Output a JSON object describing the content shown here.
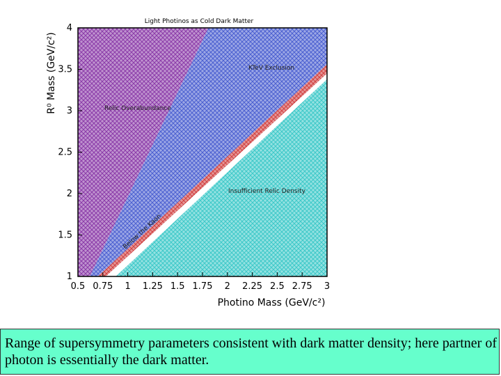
{
  "chart_data": {
    "type": "region",
    "title": "Light Photinos as Cold Dark Matter",
    "x_label": "Photino Mass (GeV/c²)",
    "y_label": "R⁰ Mass (GeV/c²)",
    "xlim": [
      0.5,
      3
    ],
    "ylim": [
      1,
      4
    ],
    "xticks": [
      0.5,
      0.75,
      1,
      1.25,
      1.5,
      1.75,
      2,
      2.25,
      2.5,
      2.75,
      3
    ],
    "yticks": [
      1,
      1.5,
      2,
      2.5,
      3,
      3.5,
      4
    ],
    "series": [
      {
        "name": "Relic Overabundance",
        "color": "#8a3aa8",
        "x": [
          0.5,
          0.62,
          1.81,
          0.5
        ],
        "y": [
          1,
          1,
          4,
          4
        ]
      },
      {
        "name": "KTeV Exclusion",
        "color": "#4a5fd0",
        "x": [
          0.62,
          1.81,
          3,
          3,
          0.7
        ],
        "y": [
          1,
          4,
          4,
          3.56,
          1
        ]
      },
      {
        "name": "Below the Kaon",
        "color": "#d04040",
        "x": [
          0.7,
          3,
          3,
          0.78
        ],
        "y": [
          1,
          3.56,
          3.45,
          1
        ]
      },
      {
        "name": "Insufficient Relic Density",
        "color": "#3cc8c8",
        "x": [
          0.88,
          3,
          3
        ],
        "y": [
          1,
          3.38,
          1
        ]
      }
    ]
  },
  "caption": "Range of supersymmetry parameters consistent with dark matter density; here partner of photon is essentially the dark matter."
}
